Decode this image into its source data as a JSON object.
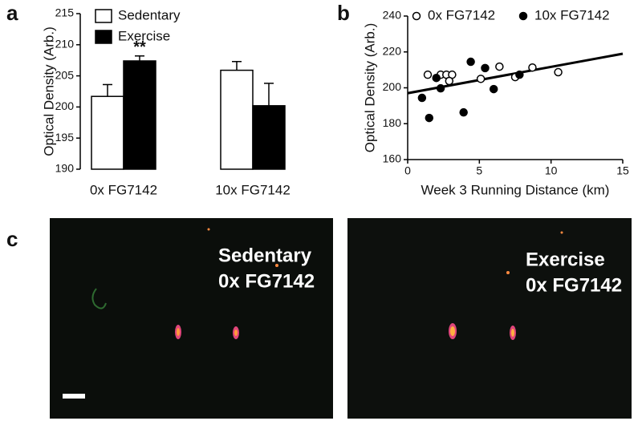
{
  "chart_data": [
    {
      "type": "bar",
      "panel_label": "a",
      "ylabel": "Optical Density (Arb.)",
      "categories": [
        "0x FG7142",
        "10x FG7142"
      ],
      "series": [
        {
          "name": "Sedentary",
          "color": "#ffffff",
          "values": [
            201.7,
            205.9
          ],
          "errors": [
            1.9,
            1.4
          ]
        },
        {
          "name": "Exercise",
          "color": "#000000",
          "values": [
            207.4,
            200.2
          ],
          "errors": [
            0.8,
            3.6
          ]
        }
      ],
      "annotation": "**",
      "ylim": [
        190,
        215
      ],
      "yticks": [
        190,
        195,
        200,
        205,
        210,
        215
      ]
    },
    {
      "type": "scatter",
      "panel_label": "b",
      "xlabel": "Week 3 Running Distance (km)",
      "ylabel": "Optical Density (Arb.)",
      "series": [
        {
          "name": "0x FG7142",
          "color": "#000000",
          "filled": false,
          "x": [
            1.4,
            2.3,
            2.7,
            3.1,
            2.9,
            5.1,
            6.4,
            7.5,
            8.7,
            10.5
          ],
          "values": [
            207.3,
            207.3,
            207.3,
            207.3,
            203.8,
            205,
            211.8,
            206,
            211.3,
            208.7
          ]
        },
        {
          "name": "10x FG7142",
          "color": "#000000",
          "filled": true,
          "x": [
            1.0,
            1.5,
            2.0,
            2.3,
            4.4,
            3.9,
            5.4,
            6.0,
            7.8
          ],
          "values": [
            194.4,
            183.2,
            205.5,
            199.7,
            214.5,
            186.3,
            211,
            199.3,
            207.3
          ]
        }
      ],
      "fit": {
        "x": [
          0,
          15
        ],
        "y": [
          197,
          219
        ]
      },
      "xlim": [
        0,
        15
      ],
      "xticks": [
        0,
        5,
        10,
        15
      ],
      "ylim": [
        160,
        240
      ],
      "yticks": [
        160,
        180,
        200,
        220,
        240
      ]
    }
  ],
  "panel_c": {
    "label": "c",
    "images": [
      {
        "caption": [
          "Sedentary",
          "0x FG7142"
        ]
      },
      {
        "caption": [
          "Exercise",
          "0x FG7142"
        ]
      }
    ]
  }
}
